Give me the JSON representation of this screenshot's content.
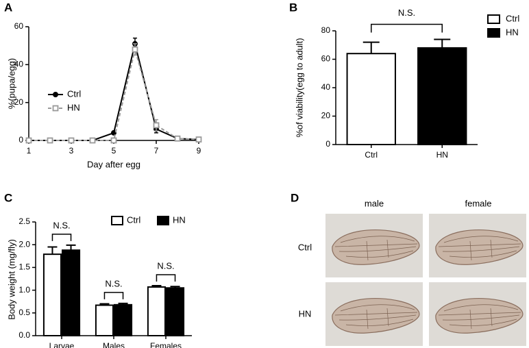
{
  "chart_data": [
    {
      "type": "line",
      "panel": "A",
      "x_label": "Day after egg",
      "y_label": "%(pupa/egg)",
      "xlim": [
        1,
        9
      ],
      "xticks": [
        1,
        3,
        5,
        7,
        9
      ],
      "ylim": [
        0,
        60
      ],
      "yticks": [
        0,
        20,
        40,
        60
      ],
      "legend": "center left",
      "series": [
        {
          "name": "Ctrl",
          "color": "#000000",
          "marker": "circle",
          "dashed": false,
          "x": [
            1,
            2,
            3,
            4,
            5,
            6,
            7,
            8,
            9
          ],
          "values": [
            0,
            0,
            0,
            0,
            4,
            51,
            6,
            1,
            0.5
          ],
          "errors": [
            0,
            0,
            0,
            0,
            0.5,
            3,
            2,
            0.5,
            0.3
          ]
        },
        {
          "name": "HN",
          "color": "#999999",
          "marker": "square",
          "dashed": true,
          "x": [
            1,
            2,
            3,
            4,
            5,
            6,
            7,
            8,
            9
          ],
          "values": [
            0,
            0,
            0,
            0,
            0,
            48,
            8,
            1,
            0.5
          ],
          "errors": [
            0,
            0,
            0,
            0,
            0,
            3,
            3,
            0.5,
            0.3
          ]
        }
      ]
    },
    {
      "type": "bar",
      "panel": "B",
      "y_label": "%of viability(egg to adult)",
      "categories": [
        "Ctrl",
        "HN"
      ],
      "values": [
        64,
        68
      ],
      "errors": [
        8,
        6
      ],
      "colors": [
        "#ffffff",
        "#000000"
      ],
      "ylim": [
        0,
        80
      ],
      "yticks": [
        0,
        20,
        40,
        60,
        80
      ],
      "legend": "upper right",
      "annotations": [
        "N.S."
      ]
    },
    {
      "type": "grouped_bar",
      "panel": "C",
      "y_label": "Body weight (mg/fly)",
      "categories": [
        "Larvae",
        "Males",
        "Females"
      ],
      "series": [
        {
          "name": "Ctrl",
          "color": "#ffffff",
          "values": [
            1.79,
            0.67,
            1.07
          ],
          "errors": [
            0.16,
            0.03,
            0.03
          ]
        },
        {
          "name": "HN",
          "color": "#000000",
          "values": [
            1.88,
            0.68,
            1.05
          ],
          "errors": [
            0.11,
            0.03,
            0.03
          ]
        }
      ],
      "ylim": [
        0,
        2.5
      ],
      "yticks": [
        {
          "value": 0,
          "label": "0.0"
        },
        0.5,
        {
          "value": 1,
          "label": "1.0"
        },
        1.5,
        {
          "value": 2,
          "label": "2.0"
        },
        2.5
      ],
      "legend": "upper right",
      "annotations": [
        "N.S.",
        "N.S.",
        "N.S."
      ]
    }
  ],
  "image_panel": {
    "panel": "D",
    "columns": [
      "male",
      "female"
    ],
    "rows": [
      "Ctrl",
      "HN"
    ]
  }
}
